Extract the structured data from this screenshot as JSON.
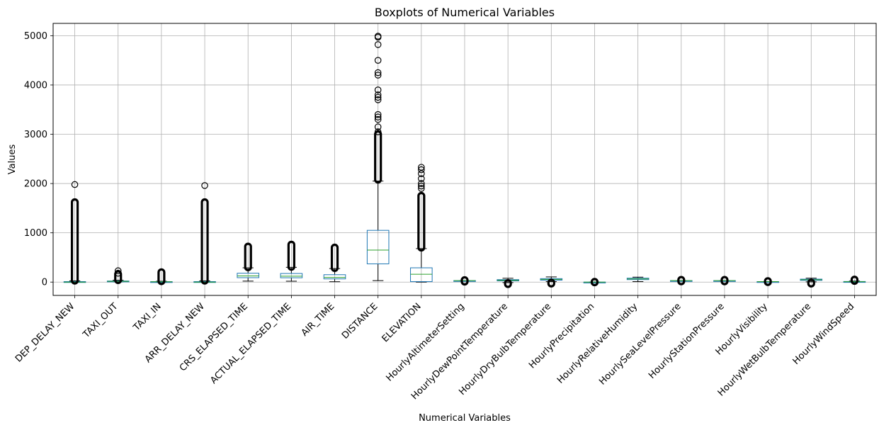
{
  "chart_data": {
    "type": "boxplot",
    "title": "Boxplots of Numerical Variables",
    "xlabel": "Numerical Variables",
    "ylabel": "Values",
    "ylim": [
      -270,
      5250
    ],
    "yticks": [
      0,
      1000,
      2000,
      3000,
      4000,
      5000
    ],
    "grid": true,
    "colors": {
      "box": "#1f77b4",
      "median": "#2ca02c",
      "whisker": "#000000",
      "flier": "#000000",
      "grid": "#b0b0b0"
    },
    "categories": [
      "DEP_DELAY_NEW",
      "TAXI_OUT",
      "TAXI_IN",
      "ARR_DELAY_NEW",
      "CRS_ELAPSED_TIME",
      "ACTUAL_ELAPSED_TIME",
      "AIR_TIME",
      "DISTANCE",
      "ELEVATION",
      "HourlyAltimeterSetting",
      "HourlyDewPointTemperature",
      "HourlyDryBulbTemperature",
      "HourlyPrecipitation",
      "HourlyRelativeHumidity",
      "HourlySeaLevelPressure",
      "HourlyStationPressure",
      "HourlyVisibility",
      "HourlyWetBulbTemperature",
      "HourlyWindSpeed"
    ],
    "boxes": [
      {
        "whislo": 0,
        "q1": 0,
        "med": 0,
        "q3": 10,
        "whishi": 25,
        "outlier_range": [
          30,
          1620
        ],
        "outliers": [
          1980
        ]
      },
      {
        "whislo": 5,
        "q1": 12,
        "med": 16,
        "q3": 22,
        "whishi": 38,
        "outlier_range": [
          40,
          160
        ],
        "outliers": [
          180,
          230
        ]
      },
      {
        "whislo": 1,
        "q1": 4,
        "med": 6,
        "q3": 9,
        "whishi": 17,
        "outlier_range": [
          18,
          200
        ],
        "outliers": []
      },
      {
        "whislo": 0,
        "q1": 0,
        "med": 0,
        "q3": 10,
        "whishi": 25,
        "outlier_range": [
          30,
          1620
        ],
        "outliers": [
          1960
        ]
      },
      {
        "whislo": 20,
        "q1": 90,
        "med": 125,
        "q3": 180,
        "whishi": 290,
        "outlier_range": [
          300,
          720
        ],
        "outliers": []
      },
      {
        "whislo": 18,
        "q1": 88,
        "med": 120,
        "q3": 175,
        "whishi": 300,
        "outlier_range": [
          310,
          760
        ],
        "outliers": []
      },
      {
        "whislo": 8,
        "q1": 65,
        "med": 95,
        "q3": 150,
        "whishi": 275,
        "outlier_range": [
          285,
          700
        ],
        "outliers": []
      },
      {
        "whislo": 30,
        "q1": 370,
        "med": 650,
        "q3": 1050,
        "whishi": 2050,
        "outlier_range": [
          2080,
          3000
        ],
        "outliers": [
          3050,
          3150,
          3300,
          3350,
          3400,
          3700,
          3750,
          3800,
          3900,
          4200,
          4250,
          4500,
          4820,
          4970,
          4990
        ]
      },
      {
        "whislo": 0,
        "q1": 10,
        "med": 160,
        "q3": 290,
        "whishi": 680,
        "outlier_range": [
          700,
          1750
        ],
        "outliers": [
          1900,
          1950,
          2000,
          2100,
          2200,
          2280,
          2330
        ]
      },
      {
        "whislo": 29.6,
        "q1": 29.9,
        "med": 30.0,
        "q3": 30.1,
        "whishi": 30.4,
        "outlier_range": [
          10,
          40
        ],
        "outliers": []
      },
      {
        "whislo": -10,
        "q1": 25,
        "med": 38,
        "q3": 50,
        "whishi": 78,
        "outlier_range": [
          -40,
          -20
        ],
        "outliers": []
      },
      {
        "whislo": 10,
        "q1": 40,
        "med": 55,
        "q3": 70,
        "whishi": 105,
        "outlier_range": [
          -30,
          -10
        ],
        "outliers": []
      },
      {
        "whislo": 0,
        "q1": 0,
        "med": 0,
        "q3": 0,
        "whishi": 0,
        "outlier_range": [
          -5,
          5
        ],
        "outliers": []
      },
      {
        "whislo": 10,
        "q1": 50,
        "med": 65,
        "q3": 80,
        "whishi": 100,
        "outlier_range": null,
        "outliers": []
      },
      {
        "whislo": 29.6,
        "q1": 29.9,
        "med": 30.0,
        "q3": 30.1,
        "whishi": 30.4,
        "outlier_range": [
          15,
          45
        ],
        "outliers": []
      },
      {
        "whislo": 28.5,
        "q1": 29.3,
        "med": 29.6,
        "q3": 29.9,
        "whishi": 30.5,
        "outlier_range": [
          15,
          45
        ],
        "outliers": []
      },
      {
        "whislo": 10,
        "q1": 10,
        "med": 10,
        "q3": 10,
        "whishi": 10,
        "outlier_range": [
          0,
          20
        ],
        "outliers": []
      },
      {
        "whislo": 5,
        "q1": 35,
        "med": 48,
        "q3": 60,
        "whishi": 80,
        "outlier_range": [
          -30,
          -10
        ],
        "outliers": []
      },
      {
        "whislo": 0,
        "q1": 5,
        "med": 8,
        "q3": 12,
        "whishi": 22,
        "outlier_range": [
          25,
          50
        ],
        "outliers": []
      }
    ]
  }
}
